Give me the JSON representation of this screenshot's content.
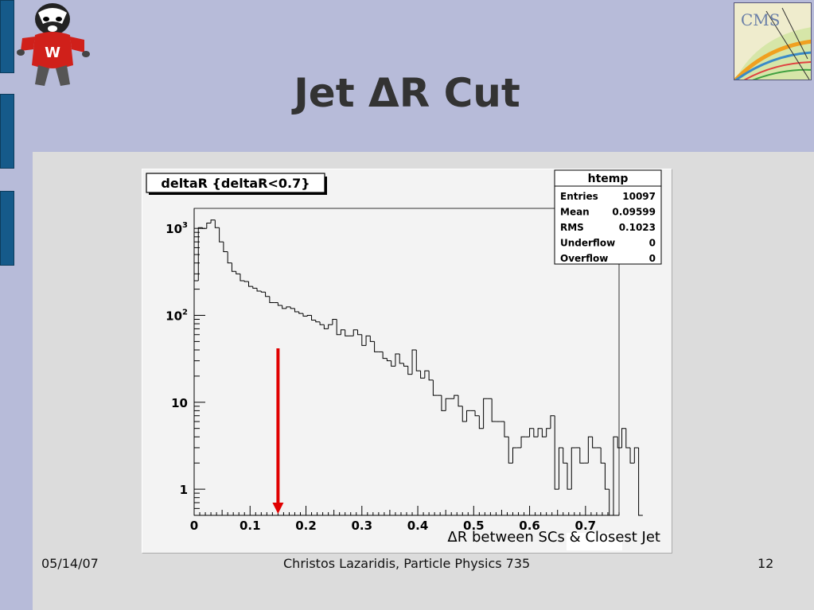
{
  "slide": {
    "title": "Jet ΔR Cut",
    "footer_date": "05/14/07",
    "footer_author": "Christos Lazaridis, Particle Physics 735",
    "page_number": "12"
  },
  "logos": {
    "cms_text": "CMS"
  },
  "colors": {
    "background": "#b7bbd9",
    "sidebar": "#155a8a",
    "cut_arrow": "#e00000"
  },
  "chart_data": {
    "type": "histogram",
    "title": "deltaR {deltaR<0.7}",
    "xlabel": "ΔR between SCs & Closest Jet",
    "ylabel": "",
    "xlim": [
      0,
      0.76
    ],
    "ylim": [
      0.5,
      1700
    ],
    "yscale": "log",
    "xticks": [
      "0",
      "0.1",
      "0.2",
      "0.3",
      "0.4",
      "0.5",
      "0.6",
      "0.7"
    ],
    "yticks": [
      {
        "value": 1000,
        "label": "10",
        "sup": "3"
      },
      {
        "value": 100,
        "label": "10",
        "sup": "2"
      },
      {
        "value": 10,
        "label": "10",
        "sup": ""
      },
      {
        "value": 1,
        "label": "1",
        "sup": ""
      }
    ],
    "bin_width": 0.0075,
    "bin_start": 0.0,
    "bin_values": [
      250,
      1020,
      1000,
      1150,
      1250,
      1020,
      700,
      540,
      400,
      320,
      300,
      250,
      245,
      215,
      205,
      190,
      185,
      165,
      140,
      140,
      130,
      120,
      125,
      120,
      110,
      105,
      98,
      100,
      88,
      84,
      78,
      70,
      78,
      90,
      60,
      68,
      58,
      58,
      68,
      60,
      45,
      58,
      50,
      38,
      38,
      32,
      30,
      26,
      36,
      28,
      26,
      21,
      40,
      23,
      19,
      23,
      18,
      12,
      12,
      8,
      11,
      11,
      12,
      9,
      6,
      8,
      8,
      7,
      5,
      11,
      11,
      6,
      6,
      6,
      4,
      2,
      3,
      3,
      4,
      4,
      5,
      4,
      5,
      4,
      5,
      7,
      1,
      3,
      2,
      1,
      3,
      3,
      2,
      2,
      4,
      3,
      3,
      2,
      1,
      0,
      4,
      3,
      5,
      3,
      2,
      3,
      0
    ],
    "stats_box": {
      "header": "htemp",
      "rows": [
        {
          "label": "Entries",
          "value": "10097"
        },
        {
          "label": "Mean",
          "value": "0.09599"
        },
        {
          "label": "RMS",
          "value": "0.1023"
        },
        {
          "label": "Underflow",
          "value": "0"
        },
        {
          "label": "Overflow",
          "value": "0"
        }
      ]
    },
    "cut_marker": {
      "x": 0.15
    }
  }
}
